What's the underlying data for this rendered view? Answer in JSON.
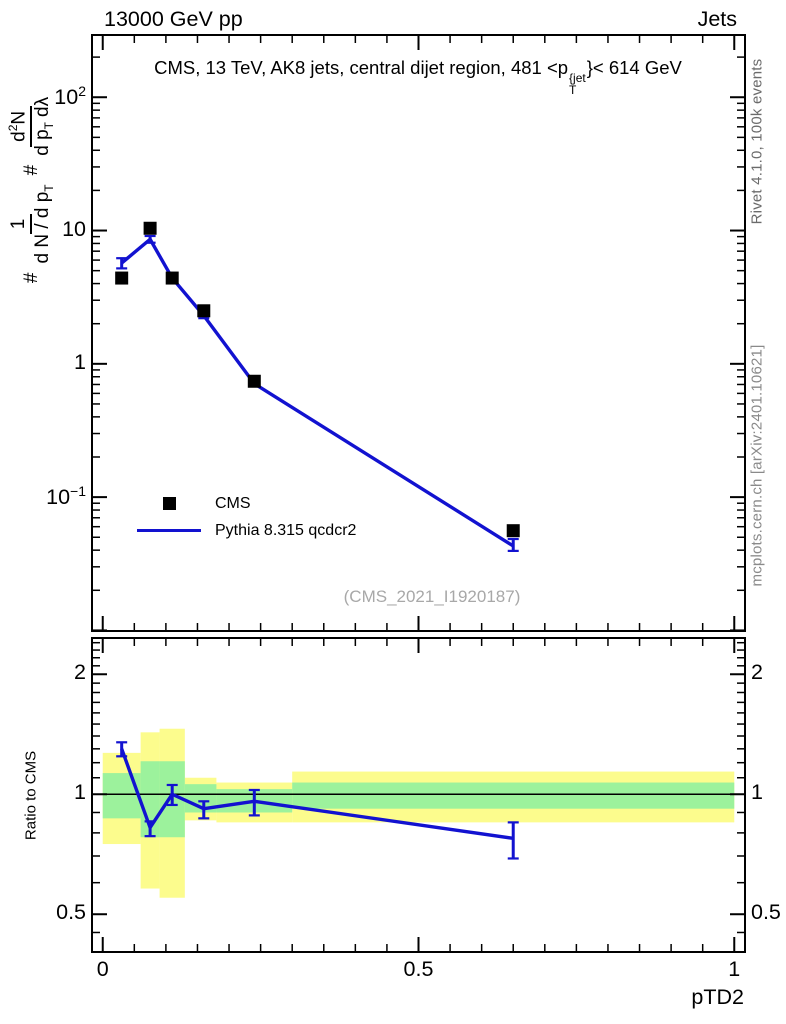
{
  "header": {
    "left": "13000 GeV pp",
    "right": "Jets"
  },
  "panel_title": {
    "pre": "CMS, 13 TeV, AK8 jets, central dijet region, 481 <p",
    "sup": "{jet",
    "sub": "T",
    "post": "}< 614 GeV"
  },
  "ylabel_formula": {
    "hash1": "#",
    "num1": "1",
    "den1_main": "d N /  d p",
    "den1_sub": "T",
    "hash2": "#",
    "num2_base": "d",
    "num2_exp": "2",
    "num2_rest": "N",
    "den2_a": "d p",
    "den2_a_sub": "T",
    "den2_b": "dλ"
  },
  "side_texts": {
    "rivet": "Rivet 4.1.0,  100k events",
    "mcplots": "mcplots.cern.ch [arXiv:2401.10621]"
  },
  "watermark": "(CMS_2021_I1920187)",
  "legend": {
    "items": [
      {
        "label": "CMS",
        "marker": "square",
        "color": "#000000"
      },
      {
        "label": "Pythia 8.315 qcdcr2",
        "marker": "line",
        "color": "#1212d0"
      }
    ]
  },
  "colors": {
    "pythia_blue": "#1212d0",
    "band_yellow": "#fcfc8d",
    "band_green": "#9cf29c",
    "rivet_gray": "#6b6b6b",
    "mcplots_gray": "#8a8a8a",
    "watermark_gray": "#a8a8a8"
  },
  "chart_data": {
    "type": "line",
    "title": "CMS, 13 TeV, AK8 jets, central dijet region, 481 < pT^{jet} < 614 GeV",
    "xlabel": "pTD2",
    "xlim": [
      -0.017,
      1.017
    ],
    "x_major_ticks": [
      0,
      0.5,
      1
    ],
    "x_tick_labels": [
      "0",
      "0.5",
      "1"
    ],
    "x_minor_tick_step": 0.05,
    "main_panel": {
      "ylog": true,
      "ylim": [
        0.0099,
        293
      ],
      "y_major_ticks": [
        100,
        10,
        1,
        0.1,
        0.01
      ],
      "y_tick_labels": [
        {
          "base": "10",
          "exp": "2",
          "value": 100
        },
        {
          "base": "10",
          "exp": "",
          "value": 10
        },
        {
          "base": "1",
          "exp": "",
          "value": 1
        },
        {
          "base": "10",
          "exp": "−1",
          "value": 0.1
        }
      ],
      "series": [
        {
          "name": "CMS",
          "style": "squares",
          "color": "#000000",
          "x": [
            0.03,
            0.075,
            0.11,
            0.16,
            0.24,
            0.65
          ],
          "y": [
            4.4,
            10.4,
            4.4,
            2.5,
            0.74,
            0.056
          ],
          "yerr": [
            0.15,
            0.3,
            0.15,
            0.08,
            0.025,
            0.002
          ]
        },
        {
          "name": "Pythia 8.315 qcdcr2",
          "style": "line",
          "color": "#1212d0",
          "x": [
            0.03,
            0.075,
            0.11,
            0.16,
            0.24,
            0.65
          ],
          "y": [
            5.7,
            8.6,
            4.4,
            2.3,
            0.71,
            0.043
          ],
          "yerr_lo": [
            0.5,
            0.5,
            0.25,
            0.1,
            0.03,
            0.0035
          ],
          "yerr_hi": [
            0.5,
            0.5,
            0.25,
            0.1,
            0.035,
            0.0055
          ]
        }
      ]
    },
    "ratio_panel": {
      "ylabel": "Ratio to CMS",
      "ylog": true,
      "ylim": [
        0.402,
        2.466
      ],
      "y_major_ticks": [
        0.5,
        1,
        2
      ],
      "y_tick_labels": [
        "0.5",
        "1",
        "2"
      ],
      "y_minor_ticks": [
        0.45,
        0.6,
        0.7,
        0.8,
        0.9,
        1.1,
        1.2,
        1.3,
        1.4,
        1.5,
        1.6,
        1.7,
        1.8,
        1.9,
        2.1,
        2.2,
        2.3,
        2.4
      ],
      "unity_line": 1,
      "bands": {
        "bin_edges": [
          0,
          0.06,
          0.09,
          0.13,
          0.18,
          0.3,
          1.0
        ],
        "yellow_lo": [
          0.75,
          0.58,
          0.55,
          0.86,
          0.85,
          0.85
        ],
        "yellow_hi": [
          1.27,
          1.43,
          1.46,
          1.1,
          1.07,
          1.14
        ],
        "green_lo": [
          0.87,
          0.78,
          0.78,
          0.9,
          0.9,
          0.92
        ],
        "green_hi": [
          1.13,
          1.21,
          1.21,
          1.06,
          1.03,
          1.07
        ]
      },
      "series": [
        {
          "name": "Pythia 8.315 qcdcr2 / CMS",
          "style": "line",
          "color": "#1212d0",
          "x": [
            0.03,
            0.075,
            0.11,
            0.16,
            0.24,
            0.65
          ],
          "y": [
            1.3,
            0.825,
            1.0,
            0.92,
            0.96,
            0.775
          ],
          "yerr_lo": [
            0.055,
            0.04,
            0.06,
            0.05,
            0.075,
            0.085
          ],
          "yerr_hi": [
            0.05,
            0.03,
            0.055,
            0.04,
            0.065,
            0.075
          ]
        }
      ]
    }
  }
}
